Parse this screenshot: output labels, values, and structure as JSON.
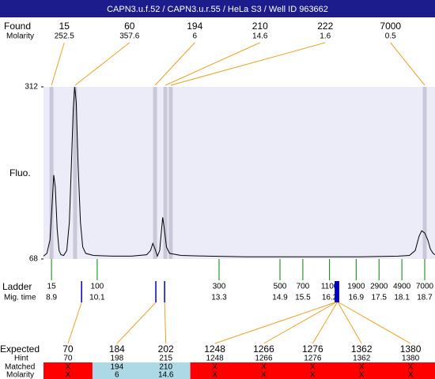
{
  "chart_data": {
    "type": "electropherogram",
    "title": "CAPN3.u.f.52 / CAPN3.u.r.55 / HeLa S3 / Well ID 963662",
    "ylabel": "Fluo.",
    "ylim": [
      68,
      312
    ],
    "yticks": [
      68,
      312
    ],
    "xlim": [
      8.69,
      18.97
    ],
    "plot_color": "#ececf8",
    "band_color": "#c8c8d8",
    "link_color": "#f0a020",
    "ladder_color": "#008000",
    "marker_color": "#0000c0",
    "matched_color": "#add8e6",
    "unmatched_color": "#ff0000",
    "found_label": "Found",
    "molarity_label": "Molarity",
    "found": [
      {
        "size": 15,
        "molarity": 252.5,
        "time": 8.9
      },
      {
        "size": 60,
        "molarity": 357.6,
        "time": 9.52
      },
      {
        "size": 194,
        "molarity": 6,
        "time": 11.62
      },
      {
        "size": 210,
        "molarity": 14.6,
        "time": 11.89
      },
      {
        "size": 222,
        "molarity": 1.6,
        "time": 12.03
      },
      {
        "size": 7000,
        "molarity": 0.5,
        "time": 18.7
      }
    ],
    "trace": {
      "color": "#000000",
      "x": [
        8.69,
        8.78,
        8.86,
        8.92,
        8.96,
        9.0,
        9.05,
        9.1,
        9.15,
        9.22,
        9.3,
        9.37,
        9.42,
        9.47,
        9.51,
        9.55,
        9.6,
        9.66,
        9.72,
        9.8,
        10.0,
        10.5,
        11.0,
        11.4,
        11.5,
        11.56,
        11.62,
        11.68,
        11.74,
        11.79,
        11.82,
        11.86,
        11.92,
        12.0,
        12.3,
        13,
        14,
        15,
        16,
        17,
        18,
        18.3,
        18.45,
        18.55,
        18.62,
        18.7,
        18.78,
        18.85,
        18.92,
        18.97
      ],
      "y": [
        72,
        76,
        95,
        150,
        187,
        170,
        110,
        80,
        74,
        73,
        80,
        120,
        200,
        280,
        312,
        290,
        200,
        120,
        85,
        76,
        73,
        72,
        72,
        74,
        80,
        90,
        82,
        72,
        80,
        110,
        127,
        112,
        85,
        76,
        73,
        72,
        71,
        71,
        71,
        71,
        72,
        73,
        80,
        100,
        108,
        105,
        95,
        82,
        76,
        74
      ]
    },
    "ladder_label": "Ladder",
    "migtime_label": "Mig. time",
    "ladder": [
      {
        "size": 15,
        "time": 8.9
      },
      {
        "size": 100,
        "time": 10.1
      },
      {
        "size": 300,
        "time": 13.3
      },
      {
        "size": 500,
        "time": 14.9
      },
      {
        "size": 700,
        "time": 15.5
      },
      {
        "size": 1100,
        "time": 16.2
      },
      {
        "size": 1900,
        "time": 16.9
      },
      {
        "size": 2900,
        "time": 17.5
      },
      {
        "size": 4900,
        "time": 18.1
      },
      {
        "size": 7000,
        "time": 18.7
      }
    ],
    "expected_label": "Expected",
    "hint_label": "Hint",
    "matched_label": "Matched",
    "expected": [
      {
        "size": 70,
        "hint": 70,
        "matched": "X",
        "molarity": "X",
        "time": 9.69
      },
      {
        "size": 184,
        "hint": 198,
        "matched": 194,
        "molarity": 6,
        "time": 11.64
      },
      {
        "size": 202,
        "hint": 215,
        "matched": 210,
        "molarity": 14.6,
        "time": 11.87
      },
      {
        "size": 1248,
        "hint": 1248,
        "matched": "X",
        "molarity": "X",
        "time": 16.35
      },
      {
        "size": 1266,
        "hint": 1266,
        "matched": "X",
        "molarity": "X",
        "time": 16.37
      },
      {
        "size": 1276,
        "hint": 1276,
        "matched": "X",
        "molarity": "X",
        "time": 16.4
      },
      {
        "size": 1362,
        "hint": 1362,
        "matched": "X",
        "molarity": "X",
        "time": 16.42
      },
      {
        "size": 1380,
        "hint": 1380,
        "matched": "X",
        "molarity": "X",
        "time": 16.44
      }
    ]
  }
}
